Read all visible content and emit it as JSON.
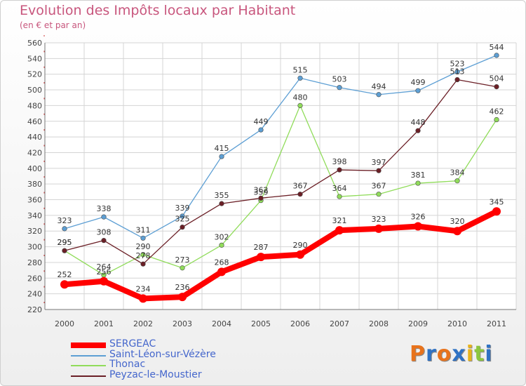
{
  "header": {
    "title": "Evolution des Impôts locaux par Habitant",
    "subtitle": "(en € et par an)"
  },
  "logo": {
    "letters": [
      "P",
      "r",
      "o",
      "x",
      "i",
      "t",
      "i"
    ],
    "colors": [
      "#e8731c",
      "#2f72c4",
      "#e8731c",
      "#2f72c4",
      "#e8b41c",
      "#8cc63f",
      "#2f72c4"
    ]
  },
  "chart_data": {
    "type": "line",
    "title": "Evolution des Impôts locaux par Habitant",
    "subtitle": "(en € et par an)",
    "xlabel": "",
    "ylabel": "",
    "ylim": [
      220,
      560
    ],
    "y_ticks": [
      220,
      240,
      260,
      280,
      300,
      320,
      340,
      360,
      380,
      400,
      420,
      440,
      460,
      480,
      500,
      520,
      540,
      560
    ],
    "categories": [
      "2000",
      "2001",
      "2002",
      "2003",
      "2004",
      "2005",
      "2006",
      "2007",
      "2008",
      "2009",
      "2010",
      "2011"
    ],
    "grid": true,
    "legend_position": "bottom-left",
    "series": [
      {
        "name": "Saint-Léon-sur-Vézère",
        "color": "#5d9fd4",
        "values": [
          323,
          338,
          311,
          339,
          415,
          449,
          515,
          503,
          494,
          499,
          523,
          544
        ]
      },
      {
        "name": "Thonac",
        "color": "#90dc5a",
        "values": [
          295,
          264,
          290,
          273,
          302,
          359,
          480,
          364,
          367,
          381,
          384,
          462
        ]
      },
      {
        "name": "Peyzac-le-Moustier",
        "color": "#6b1f26",
        "values": [
          295,
          308,
          278,
          325,
          355,
          362,
          367,
          398,
          397,
          448,
          513,
          504
        ]
      },
      {
        "name": "SERGEAC",
        "color": "#ff0000",
        "values": [
          252,
          256,
          234,
          236,
          268,
          287,
          290,
          321,
          323,
          326,
          320,
          345
        ]
      }
    ],
    "legend_order": [
      "SERGEAC",
      "Saint-Léon-sur-Vézère",
      "Thonac",
      "Peyzac-le-Moustier"
    ]
  }
}
